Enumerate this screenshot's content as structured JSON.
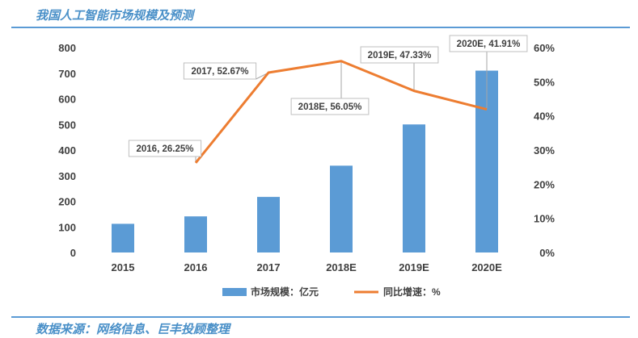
{
  "header": {
    "title": "我国人工智能市场规模及预测"
  },
  "footer": {
    "source": "数据来源：网络信息、巨丰投顾整理"
  },
  "colors": {
    "bar": "#5b9bd5",
    "line": "#ed7d31",
    "rule": "#5b9bd5",
    "title": "#4a90c8"
  },
  "chart_data": {
    "type": "bar",
    "categories": [
      "2015",
      "2016",
      "2017",
      "2018E",
      "2019E",
      "2020E"
    ],
    "series": [
      {
        "name": "市场规模：亿元",
        "type": "bar",
        "axis": "left",
        "values": [
          112,
          141,
          217,
          339,
          500,
          710
        ]
      },
      {
        "name": "同比增速：%",
        "type": "line",
        "axis": "right",
        "values": [
          null,
          26.25,
          52.67,
          56.05,
          47.33,
          41.91
        ]
      }
    ],
    "y_left": {
      "ylim": [
        0,
        800
      ],
      "ticks": [
        "0",
        "100",
        "200",
        "300",
        "400",
        "500",
        "600",
        "700",
        "800"
      ]
    },
    "y_right": {
      "ylim": [
        0,
        60
      ],
      "ticks": [
        "0%",
        "10%",
        "20%",
        "30%",
        "40%",
        "50%",
        "60%"
      ]
    },
    "annotations": [
      "2016, 26.25%",
      "2017, 52.67%",
      "2018E, 56.05%",
      "2019E, 47.33%",
      "2020E, 41.91%"
    ],
    "legend_position": "bottom",
    "grid": false
  }
}
